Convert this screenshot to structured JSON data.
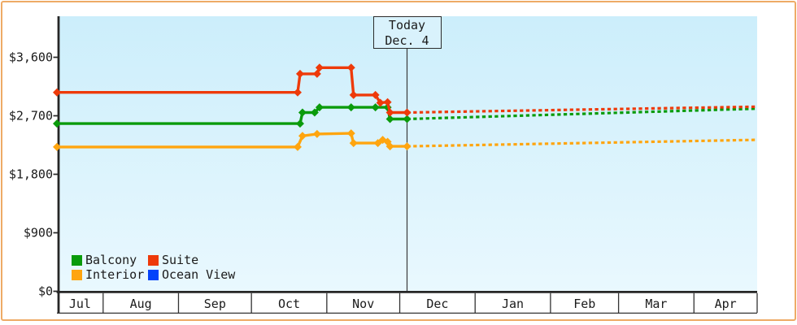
{
  "page": {
    "background": "#ffffff",
    "frame_border_color": "#eeab66"
  },
  "chart_data": {
    "type": "line",
    "title": "",
    "xlabel": "",
    "ylabel": "",
    "grid": false,
    "legend_position": "bottom-left",
    "plot": {
      "bg_top": "#cceefb",
      "bg_bottom": "#e9f8fe"
    },
    "y_axis": {
      "ylim": [
        0,
        4230
      ],
      "ticks": [
        {
          "value": 0,
          "label": "$0"
        },
        {
          "value": 900,
          "label": "$900"
        },
        {
          "value": 1800,
          "label": "$1,800"
        },
        {
          "value": 2700,
          "label": "$2,700"
        },
        {
          "value": 3600,
          "label": "$3,600"
        }
      ]
    },
    "x_axis": {
      "start": "Jul 13",
      "end": "Apr 27",
      "months": [
        "Jul",
        "Aug",
        "Sep",
        "Oct",
        "Nov",
        "Dec",
        "Jan",
        "Feb",
        "Mar",
        "Apr"
      ]
    },
    "today": {
      "title": "Today",
      "display_date": "Dec. 4",
      "date": "Dec 4"
    },
    "draw_order": [
      3,
      2,
      0,
      1
    ],
    "series": [
      {
        "name": "Balcony",
        "color": "#0a9b0b",
        "points": [
          {
            "d": "Jul 13",
            "v": 2580
          },
          {
            "d": "Oct 21",
            "v": 2580
          },
          {
            "d": "Oct 22",
            "v": 2750
          },
          {
            "d": "Oct 27",
            "v": 2750
          },
          {
            "d": "Oct 29",
            "v": 2830
          },
          {
            "d": "Nov 11",
            "v": 2830
          },
          {
            "d": "Nov 21",
            "v": 2830
          },
          {
            "d": "Nov 26",
            "v": 2830
          },
          {
            "d": "Nov 27",
            "v": 2650
          },
          {
            "d": "Dec 4",
            "v": 2650
          }
        ],
        "forecast": {
          "d": "Apr 27",
          "v": 2810
        }
      },
      {
        "name": "Suite",
        "color": "#ee3a0a",
        "points": [
          {
            "d": "Jul 13",
            "v": 3060
          },
          {
            "d": "Oct 20",
            "v": 3060
          },
          {
            "d": "Oct 21",
            "v": 3345
          },
          {
            "d": "Oct 28",
            "v": 3345
          },
          {
            "d": "Oct 29",
            "v": 3440
          },
          {
            "d": "Nov 11",
            "v": 3440
          },
          {
            "d": "Nov 12",
            "v": 3020
          },
          {
            "d": "Nov 21",
            "v": 3020
          },
          {
            "d": "Nov 23",
            "v": 2900
          },
          {
            "d": "Nov 26",
            "v": 2910
          },
          {
            "d": "Nov 27",
            "v": 2750
          },
          {
            "d": "Dec 4",
            "v": 2750
          }
        ],
        "forecast": {
          "d": "Apr 27",
          "v": 2840
        }
      },
      {
        "name": "Interior",
        "color": "#ffa50f",
        "points": [
          {
            "d": "Jul 13",
            "v": 2220
          },
          {
            "d": "Oct 20",
            "v": 2220
          },
          {
            "d": "Oct 22",
            "v": 2390
          },
          {
            "d": "Oct 28",
            "v": 2420
          },
          {
            "d": "Nov 11",
            "v": 2430
          },
          {
            "d": "Nov 12",
            "v": 2280
          },
          {
            "d": "Nov 22",
            "v": 2280
          },
          {
            "d": "Nov 24",
            "v": 2330
          },
          {
            "d": "Nov 26",
            "v": 2300
          },
          {
            "d": "Nov 27",
            "v": 2230
          },
          {
            "d": "Dec 4",
            "v": 2230
          }
        ],
        "forecast": {
          "d": "Apr 27",
          "v": 2330
        }
      },
      {
        "name": "Ocean View",
        "color": "#0443fa",
        "points": [],
        "forecast": null
      }
    ]
  }
}
